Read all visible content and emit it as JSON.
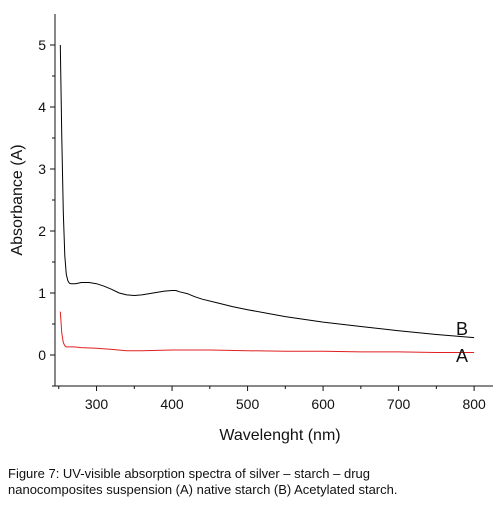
{
  "chart_data": {
    "type": "line",
    "xlabel": "Wavelenght (nm)",
    "ylabel": "Absorbance (A)",
    "xlim": [
      245,
      825
    ],
    "ylim": [
      -0.5,
      5.5
    ],
    "xticks": [
      300,
      400,
      500,
      600,
      700,
      800
    ],
    "yticks": [
      0,
      1,
      2,
      3,
      4,
      5
    ],
    "grid": false,
    "series": [
      {
        "name": "B",
        "color": "#000000",
        "x": [
          252,
          254,
          256,
          258,
          260,
          262,
          264,
          266,
          268,
          272,
          280,
          290,
          300,
          310,
          320,
          330,
          340,
          350,
          360,
          370,
          380,
          390,
          400,
          405,
          410,
          420,
          430,
          440,
          460,
          480,
          500,
          550,
          600,
          650,
          700,
          750,
          800
        ],
        "y": [
          5.0,
          3.5,
          2.3,
          1.6,
          1.3,
          1.2,
          1.16,
          1.15,
          1.15,
          1.15,
          1.17,
          1.17,
          1.15,
          1.11,
          1.06,
          1.0,
          0.97,
          0.96,
          0.97,
          0.99,
          1.01,
          1.03,
          1.04,
          1.04,
          1.02,
          0.99,
          0.94,
          0.9,
          0.84,
          0.78,
          0.73,
          0.62,
          0.53,
          0.46,
          0.39,
          0.33,
          0.28
        ]
      },
      {
        "name": "A",
        "color": "#e02020",
        "x": [
          252,
          254,
          256,
          258,
          260,
          264,
          270,
          280,
          300,
          320,
          340,
          360,
          400,
          450,
          500,
          550,
          600,
          650,
          700,
          750,
          800
        ],
        "y": [
          0.7,
          0.35,
          0.2,
          0.15,
          0.13,
          0.13,
          0.13,
          0.12,
          0.11,
          0.09,
          0.07,
          0.07,
          0.08,
          0.08,
          0.07,
          0.06,
          0.06,
          0.05,
          0.05,
          0.04,
          0.04
        ]
      }
    ],
    "series_labels": [
      "B",
      "A"
    ]
  },
  "caption": {
    "line1": "Figure 7: UV-visible absorption spectra of silver – starch – drug",
    "line2": "nanocomposites suspension (A) native starch (B) Acetylated starch."
  }
}
